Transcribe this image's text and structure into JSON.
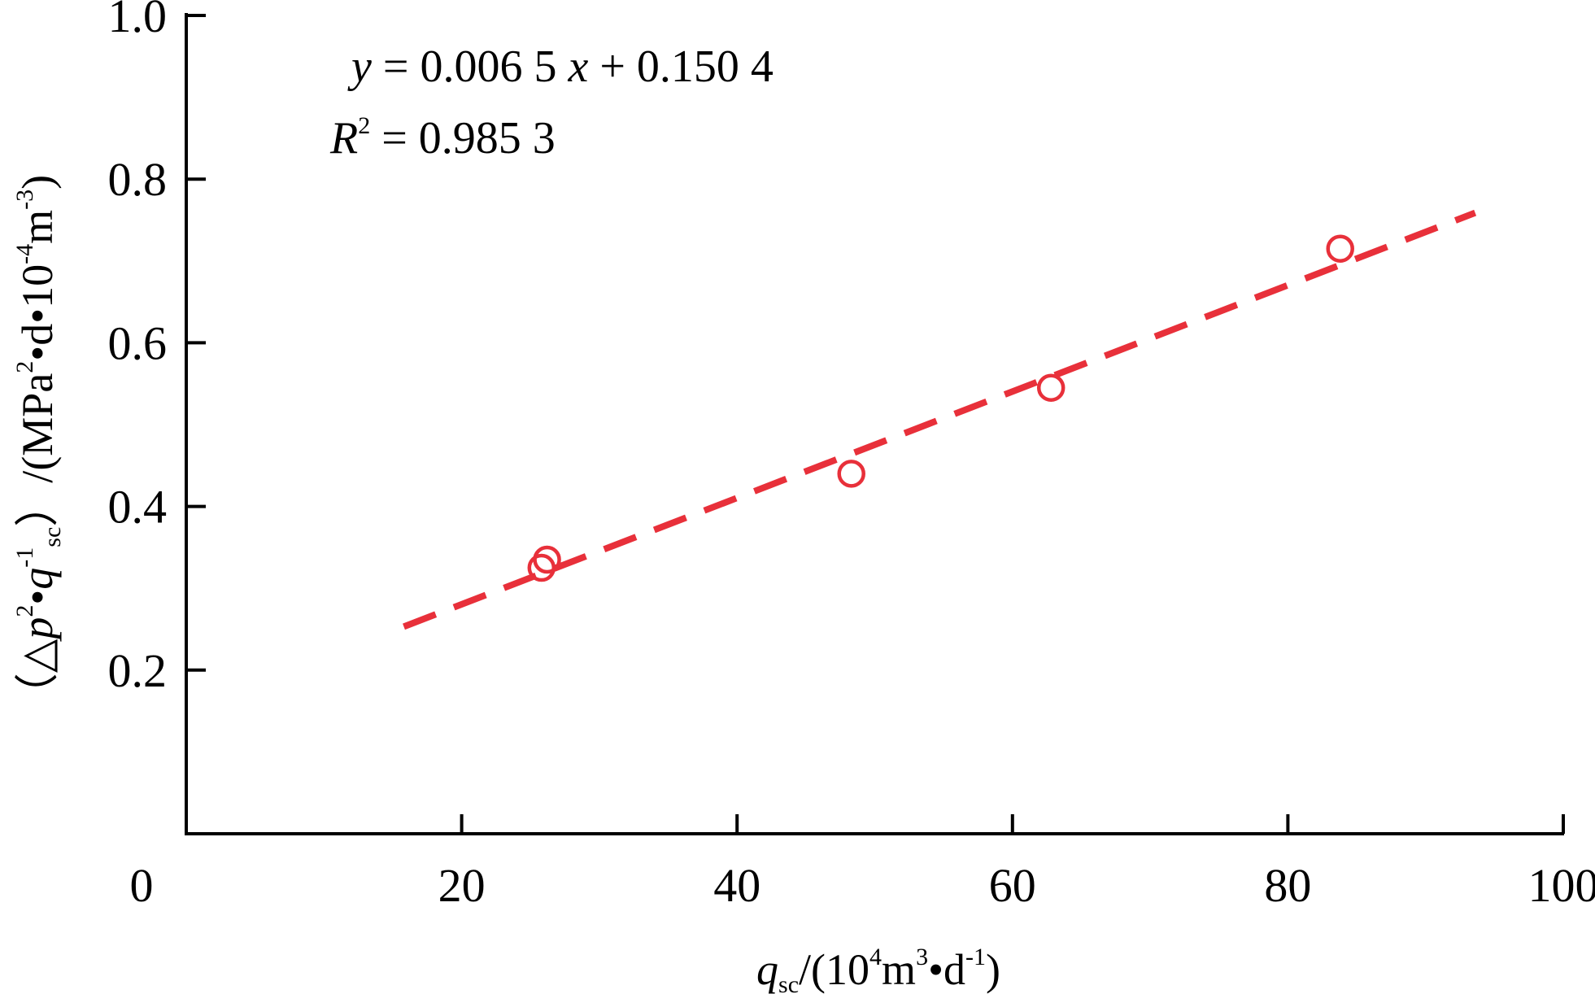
{
  "chart_data": {
    "type": "scatter",
    "title": "",
    "xlabel": {
      "q": "q",
      "sub": "sc",
      "unit_open": "/(10",
      "unit_exp1": "4",
      "unit_m": "m",
      "unit_exp2": "3",
      "unit_dot": "•d",
      "unit_exp3": "-1",
      "unit_close": ")"
    },
    "ylabel": {
      "open": "（△",
      "p": "p",
      "p_exp": "2",
      "dot": "•",
      "q": "q",
      "q_exp": "-1",
      "q_sub": "sc",
      "close": "）",
      "unit_open": "/(MPa",
      "unit_exp1": "2",
      "unit_mid": "•d•10",
      "unit_exp2": "-4",
      "unit_m": "m",
      "unit_exp3": "-3",
      "unit_close": ")"
    },
    "xlim": [
      0,
      100
    ],
    "ylim": [
      0,
      1.0
    ],
    "x_ticks": [
      0,
      20,
      40,
      60,
      80,
      100
    ],
    "x_tick_labels": [
      "0",
      "20",
      "40",
      "60",
      "80",
      "100"
    ],
    "y_ticks": [
      0.2,
      0.4,
      0.6,
      0.8,
      1.0
    ],
    "y_tick_labels": [
      "0.2",
      "0.4",
      "0.6",
      "0.8",
      "1.0"
    ],
    "grid": false,
    "series": [
      {
        "points": [
          {
            "x": 25.8,
            "y": 0.325
          },
          {
            "x": 26.2,
            "y": 0.335
          },
          {
            "x": 48.3,
            "y": 0.44
          },
          {
            "x": 62.8,
            "y": 0.545
          },
          {
            "x": 83.8,
            "y": 0.715
          }
        ],
        "color": "#e8303a",
        "marker": "open-circle"
      }
    ],
    "trendline": {
      "slope": 0.0065,
      "intercept": 0.1504,
      "x_range": [
        15.8,
        93.6
      ],
      "color": "#e8303a",
      "style": "dashed"
    },
    "annotations": {
      "equation": {
        "y": "y",
        "eq1": " = 0.006 5 ",
        "x": "x",
        "eq2": " + 0.150 4"
      },
      "r2": {
        "r": "R",
        "exp": "2",
        "value": " = 0.985 3"
      }
    }
  }
}
